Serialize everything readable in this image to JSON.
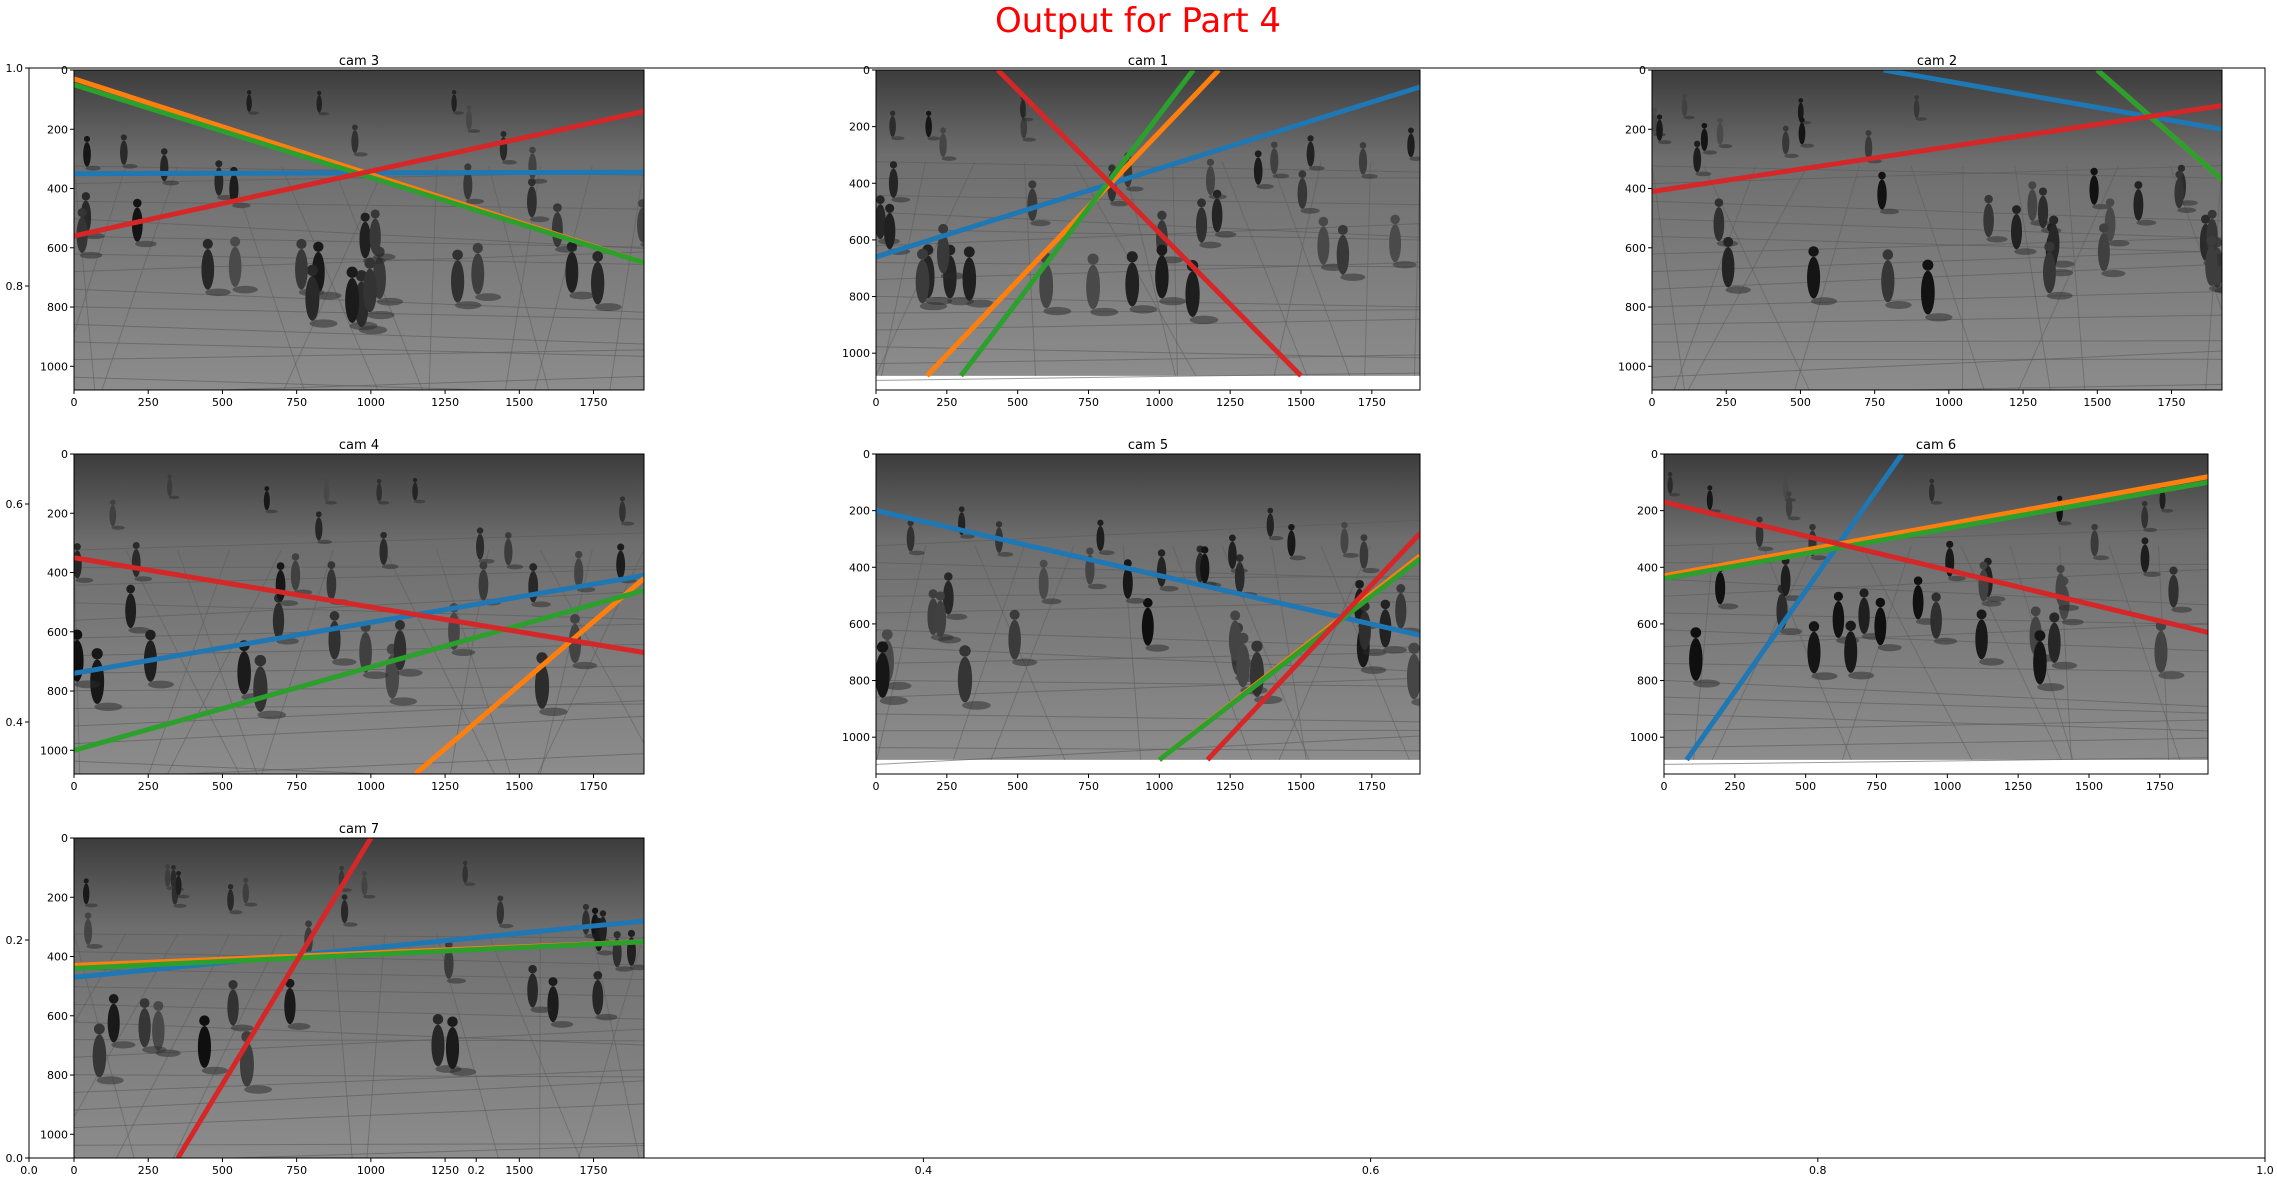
{
  "figure": {
    "suptitle": "Output for Part 4",
    "suptitle_color": "#ff0000"
  },
  "chart_data": [
    {
      "type": "scatter",
      "title": "",
      "role": "background-axes",
      "xlim": [
        0.0,
        1.0
      ],
      "ylim": [
        0.0,
        1.0
      ],
      "xticks": [
        "0.0",
        "0.2",
        "0.4",
        "0.6",
        "0.8",
        "1.0"
      ],
      "yticks": [
        "0.0",
        "0.2",
        "0.4",
        "0.6",
        "0.8",
        "1.0"
      ],
      "grid": false,
      "series": []
    },
    {
      "type": "line",
      "title": "cam 3",
      "image": {
        "width": 1920,
        "height": 1080,
        "tone": "grayscale"
      },
      "xlim": [
        0,
        1920
      ],
      "ylim": [
        1080,
        0
      ],
      "xticks": [
        0,
        250,
        500,
        750,
        1000,
        1250,
        1500,
        1750
      ],
      "yticks": [
        0,
        200,
        400,
        600,
        800,
        1000
      ],
      "series": [
        {
          "color": "#1f77b4",
          "points": [
            [
              0,
              350
            ],
            [
              1920,
              345
            ]
          ]
        },
        {
          "color": "#ff7f0e",
          "points": [
            [
              0,
              30
            ],
            [
              1920,
              650
            ]
          ]
        },
        {
          "color": "#2ca02c",
          "points": [
            [
              0,
              50
            ],
            [
              1920,
              650
            ]
          ]
        },
        {
          "color": "#d62728",
          "points": [
            [
              0,
              560
            ],
            [
              1920,
              140
            ]
          ]
        }
      ]
    },
    {
      "type": "line",
      "title": "cam 1",
      "image": {
        "width": 1920,
        "height": 1080,
        "tone": "grayscale"
      },
      "xlim": [
        0,
        1920
      ],
      "ylim": [
        1130,
        0
      ],
      "xticks": [
        0,
        250,
        500,
        750,
        1000,
        1250,
        1500,
        1750
      ],
      "yticks": [
        0,
        200,
        400,
        600,
        800,
        1000
      ],
      "series": [
        {
          "color": "#1f77b4",
          "points": [
            [
              0,
              660
            ],
            [
              1920,
              60
            ]
          ]
        },
        {
          "color": "#ff7f0e",
          "points": [
            [
              180,
              1080
            ],
            [
              1210,
              0
            ]
          ]
        },
        {
          "color": "#2ca02c",
          "points": [
            [
              300,
              1080
            ],
            [
              1120,
              0
            ]
          ]
        },
        {
          "color": "#d62728",
          "points": [
            [
              430,
              0
            ],
            [
              1500,
              1080
            ]
          ]
        }
      ]
    },
    {
      "type": "line",
      "title": "cam 2",
      "image": {
        "width": 1920,
        "height": 1080,
        "tone": "grayscale"
      },
      "xlim": [
        0,
        1920
      ],
      "ylim": [
        1080,
        0
      ],
      "xticks": [
        0,
        250,
        500,
        750,
        1000,
        1250,
        1500,
        1750
      ],
      "yticks": [
        0,
        200,
        400,
        600,
        800,
        1000
      ],
      "series": [
        {
          "color": "#1f77b4",
          "points": [
            [
              780,
              0
            ],
            [
              1920,
              200
            ]
          ]
        },
        {
          "color": "#ff7f0e",
          "points": [
            [
              1500,
              0
            ],
            [
              1920,
              370
            ]
          ]
        },
        {
          "color": "#2ca02c",
          "points": [
            [
              1500,
              0
            ],
            [
              1920,
              370
            ]
          ]
        },
        {
          "color": "#d62728",
          "points": [
            [
              0,
              410
            ],
            [
              1920,
              120
            ]
          ]
        }
      ]
    },
    {
      "type": "line",
      "title": "cam 4",
      "image": {
        "width": 1920,
        "height": 1080,
        "tone": "grayscale"
      },
      "xlim": [
        0,
        1920
      ],
      "ylim": [
        1080,
        0
      ],
      "xticks": [
        0,
        250,
        500,
        750,
        1000,
        1250,
        1500,
        1750
      ],
      "yticks": [
        0,
        200,
        400,
        600,
        800,
        1000
      ],
      "series": [
        {
          "color": "#1f77b4",
          "points": [
            [
              0,
              740
            ],
            [
              1920,
              410
            ]
          ]
        },
        {
          "color": "#ff7f0e",
          "points": [
            [
              1150,
              1080
            ],
            [
              1920,
              420
            ]
          ]
        },
        {
          "color": "#2ca02c",
          "points": [
            [
              0,
              1000
            ],
            [
              1920,
              460
            ]
          ]
        },
        {
          "color": "#d62728",
          "points": [
            [
              0,
              350
            ],
            [
              1920,
              670
            ]
          ]
        }
      ]
    },
    {
      "type": "line",
      "title": "cam 5",
      "image": {
        "width": 1920,
        "height": 1080,
        "tone": "grayscale"
      },
      "xlim": [
        0,
        1920
      ],
      "ylim": [
        1130,
        0
      ],
      "xticks": [
        0,
        250,
        500,
        750,
        1000,
        1250,
        1500,
        1750
      ],
      "yticks": [
        0,
        200,
        400,
        600,
        800,
        1000
      ],
      "series": [
        {
          "color": "#1f77b4",
          "points": [
            [
              0,
              200
            ],
            [
              1920,
              640
            ]
          ]
        },
        {
          "color": "#ff7f0e",
          "points": [
            [
              1000,
              1080
            ],
            [
              1920,
              360
            ]
          ]
        },
        {
          "color": "#2ca02c",
          "points": [
            [
              1000,
              1080
            ],
            [
              1920,
              370
            ]
          ]
        },
        {
          "color": "#d62728",
          "points": [
            [
              1170,
              1080
            ],
            [
              1920,
              280
            ]
          ]
        }
      ]
    },
    {
      "type": "line",
      "title": "cam 6",
      "image": {
        "width": 1920,
        "height": 1080,
        "tone": "grayscale"
      },
      "xlim": [
        0,
        1920
      ],
      "ylim": [
        1130,
        0
      ],
      "xticks": [
        0,
        250,
        500,
        750,
        1000,
        1250,
        1500,
        1750
      ],
      "yticks": [
        0,
        200,
        400,
        600,
        800,
        1000
      ],
      "series": [
        {
          "color": "#1f77b4",
          "points": [
            [
              80,
              1080
            ],
            [
              840,
              0
            ]
          ]
        },
        {
          "color": "#ff7f0e",
          "points": [
            [
              0,
              430
            ],
            [
              1920,
              80
            ]
          ]
        },
        {
          "color": "#2ca02c",
          "points": [
            [
              0,
              440
            ],
            [
              1920,
              100
            ]
          ]
        },
        {
          "color": "#d62728",
          "points": [
            [
              0,
              170
            ],
            [
              1920,
              630
            ]
          ]
        }
      ]
    },
    {
      "type": "line",
      "title": "cam 7",
      "image": {
        "width": 1920,
        "height": 1080,
        "tone": "grayscale"
      },
      "xlim": [
        0,
        1920
      ],
      "ylim": [
        1080,
        0
      ],
      "xticks": [
        0,
        250,
        500,
        750,
        1000,
        1250,
        1500,
        1750
      ],
      "yticks": [
        0,
        200,
        400,
        600,
        800,
        1000
      ],
      "series": [
        {
          "color": "#1f77b4",
          "points": [
            [
              0,
              470
            ],
            [
              1920,
              280
            ]
          ]
        },
        {
          "color": "#ff7f0e",
          "points": [
            [
              0,
              430
            ],
            [
              1920,
              350
            ]
          ]
        },
        {
          "color": "#2ca02c",
          "points": [
            [
              0,
              440
            ],
            [
              1920,
              350
            ]
          ]
        },
        {
          "color": "#d62728",
          "points": [
            [
              350,
              1080
            ],
            [
              1000,
              0
            ]
          ]
        }
      ]
    }
  ]
}
